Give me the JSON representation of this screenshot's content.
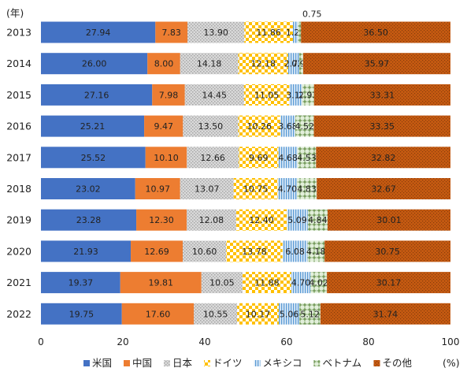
{
  "chart_data": {
    "type": "bar",
    "orientation": "horizontal",
    "stacked": true,
    "title": "",
    "ylabel": "(年)",
    "xlabel": "(%)",
    "xlim": [
      0,
      100
    ],
    "xticks": [
      0,
      20,
      40,
      60,
      80,
      100
    ],
    "categories": [
      "2013",
      "2014",
      "2015",
      "2016",
      "2017",
      "2018",
      "2019",
      "2020",
      "2021",
      "2022"
    ],
    "series": [
      {
        "name": "米国",
        "color": "#4472c4",
        "values": [
          27.94,
          26.0,
          27.16,
          25.21,
          25.52,
          23.02,
          23.28,
          21.93,
          19.37,
          19.75
        ]
      },
      {
        "name": "中国",
        "color": "#ed7d31",
        "values": [
          7.83,
          8.0,
          7.98,
          9.47,
          10.1,
          10.97,
          12.3,
          12.69,
          19.81,
          17.6
        ]
      },
      {
        "name": "日本",
        "color": "#bfbfbf",
        "pattern": "dots-grey",
        "values": [
          13.9,
          14.18,
          14.45,
          13.5,
          12.66,
          13.07,
          12.08,
          10.6,
          10.05,
          10.55
        ]
      },
      {
        "name": "ドイツ",
        "color": "#ffc000",
        "pattern": "check-yellow",
        "values": [
          11.86,
          12.18,
          11.05,
          10.26,
          9.69,
          10.75,
          12.4,
          13.78,
          11.88,
          10.17
        ]
      },
      {
        "name": "メキシコ",
        "color": "#9dc3e6",
        "pattern": "vlines-blue",
        "values": [
          1.22,
          2.72,
          3.12,
          3.68,
          4.68,
          4.7,
          5.09,
          6.08,
          4.7,
          5.06
        ]
      },
      {
        "name": "ベトナム",
        "color": "#70ad47",
        "pattern": "plus-green",
        "values": [
          0.75,
          0.95,
          2.93,
          4.52,
          4.53,
          4.83,
          4.84,
          4.18,
          4.02,
          5.12
        ]
      },
      {
        "name": "その他",
        "color": "#c55a11",
        "pattern": "dots-brown",
        "values": [
          36.5,
          35.97,
          33.31,
          33.35,
          32.82,
          32.67,
          30.01,
          30.75,
          30.17,
          31.74
        ]
      }
    ],
    "labels": [
      [
        "27.94",
        "7.83",
        "13.90",
        "11.86",
        "1.22",
        "",
        "36.50"
      ],
      [
        "26.00",
        "8.00",
        "14.18",
        "12.18",
        "2.72",
        "0.95",
        "35.97"
      ],
      [
        "27.16",
        "7.98",
        "14.45",
        "11.05",
        "3.12",
        "2.93",
        "33.31"
      ],
      [
        "25.21",
        "9.47",
        "13.50",
        "10.26",
        "3.68",
        "4.52",
        "33.35"
      ],
      [
        "25.52",
        "10.10",
        "12.66",
        "9.69",
        "4.68",
        "4.53",
        "32.82"
      ],
      [
        "23.02",
        "10.97",
        "13.07",
        "10.75",
        "4.70",
        "4.83",
        "32.67"
      ],
      [
        "23.28",
        "12.30",
        "12.08",
        "12.40",
        "5.09",
        "4.84",
        "30.01"
      ],
      [
        "21.93",
        "12.69",
        "10.60",
        "13.78",
        "6.08",
        "4.18",
        "30.75"
      ],
      [
        "19.37",
        "19.81",
        "10.05",
        "11.88",
        "4.70",
        "4.02",
        "30.17"
      ],
      [
        "19.75",
        "17.60",
        "10.55",
        "10.17",
        "5.06",
        "5.12",
        "31.74"
      ]
    ],
    "annotations": [
      {
        "text": "0.75",
        "category": "2013",
        "series": "ベトナム",
        "placement": "above"
      }
    ],
    "legend": {
      "placement": "bottom"
    },
    "grid": false
  }
}
